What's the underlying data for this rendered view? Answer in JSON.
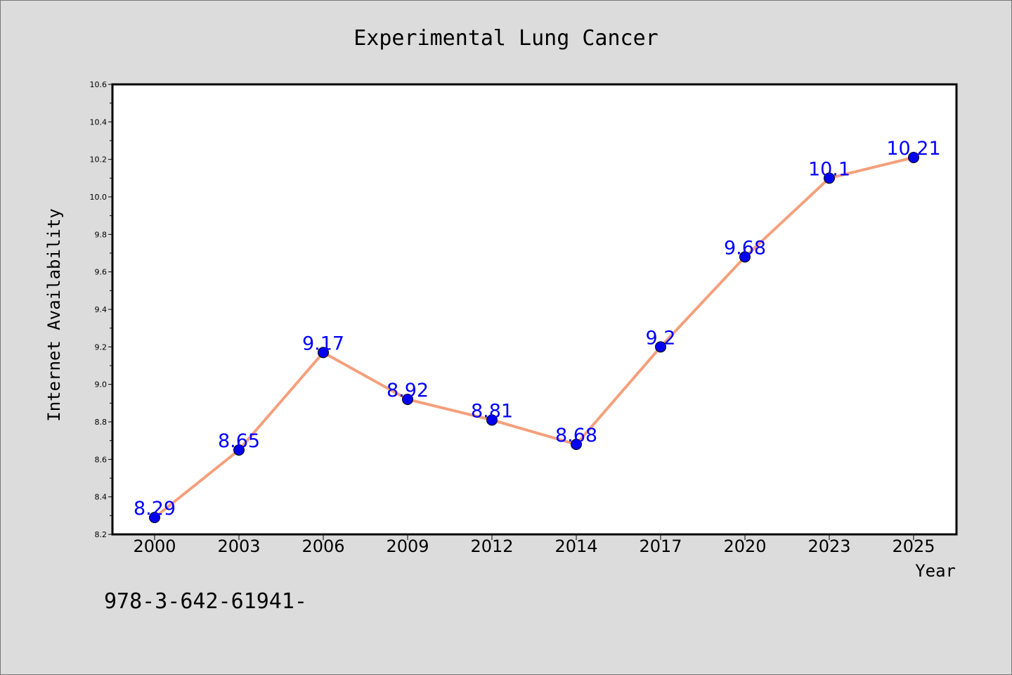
{
  "chart_data": {
    "type": "line",
    "title": "Experimental Lung Cancer",
    "xlabel": "Year",
    "ylabel": "Internet Availability",
    "categories": [
      "2000",
      "2003",
      "2006",
      "2009",
      "2012",
      "2014",
      "2017",
      "2020",
      "2023",
      "2025"
    ],
    "series": [
      {
        "values": [
          8.29,
          8.65,
          9.17,
          8.92,
          8.81,
          8.68,
          9.2,
          9.68,
          10.1,
          10.21
        ],
        "data_labels": [
          "8.29",
          "8.65",
          "9.17",
          "8.92",
          "8.81",
          "8.68",
          "9.2",
          "9.68",
          "10.1",
          "10.21"
        ],
        "line_color": "#f4a07c",
        "marker_color": "#0000ee",
        "label_color": "#0000ff"
      }
    ],
    "ylim": [
      8.2,
      10.6
    ],
    "yticks": [
      "8.2",
      "8.4",
      "8.6",
      "8.8",
      "9.0",
      "9.2",
      "9.4",
      "9.6",
      "9.8",
      "10.0",
      "10.2",
      "10.4",
      "10.6"
    ],
    "grid": false,
    "legend": "none"
  },
  "footer": {
    "text": "978-3-642-61941-"
  }
}
